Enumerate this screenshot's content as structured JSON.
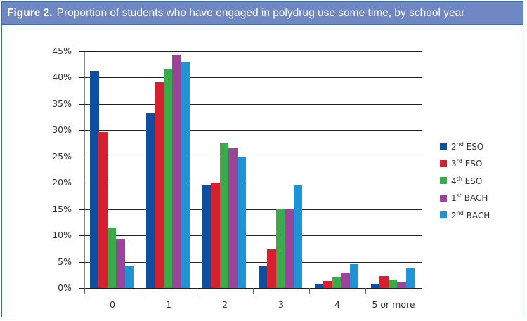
{
  "figure": {
    "number_label": "Figure 2.",
    "title": "Proportion of students who have engaged in polydrug use some time, by school year"
  },
  "colors": {
    "header_bg": "#6f88c4",
    "frame_border": "#3a6aa8",
    "series": [
      "#0a4fa0",
      "#d62030",
      "#3aab48",
      "#9c449c",
      "#1e94d6"
    ]
  },
  "chart_data": {
    "type": "bar",
    "title": "Proportion of students who have engaged in polydrug use some time, by school year",
    "xlabel": "",
    "ylabel": "",
    "categories": [
      "0",
      "1",
      "2",
      "3",
      "4",
      "5 or more"
    ],
    "ylim": [
      0,
      45
    ],
    "yticks": [
      "0%",
      "5%",
      "10%",
      "15%",
      "20%",
      "25%",
      "30%",
      "35%",
      "40%",
      "45%"
    ],
    "grid": true,
    "legend_position": "right",
    "series": [
      {
        "name": "2nd ESO",
        "base": "2",
        "sup": "nd",
        "rest": " ESO",
        "color": "#0a4fa0",
        "values": [
          41.3,
          33.3,
          19.5,
          4.1,
          0.8,
          0.8
        ]
      },
      {
        "name": "3rd ESO",
        "base": "3",
        "sup": "rd",
        "rest": " ESO",
        "color": "#d62030",
        "values": [
          29.6,
          39.1,
          20.0,
          7.4,
          1.3,
          2.3
        ]
      },
      {
        "name": "4th ESO",
        "base": "4",
        "sup": "th",
        "rest": " ESO",
        "color": "#3aab48",
        "values": [
          11.5,
          41.7,
          27.7,
          15.1,
          2.1,
          1.6
        ]
      },
      {
        "name": "1st BACH",
        "base": "1",
        "sup": "st",
        "rest": " BACH",
        "color": "#9c449c",
        "values": [
          9.4,
          44.3,
          26.6,
          15.1,
          2.9,
          1.1
        ]
      },
      {
        "name": "2nd BACH",
        "base": "2",
        "sup": "nd",
        "rest": " BACH",
        "color": "#1e94d6",
        "values": [
          4.3,
          43.0,
          25.0,
          19.5,
          4.5,
          3.8
        ]
      }
    ]
  }
}
